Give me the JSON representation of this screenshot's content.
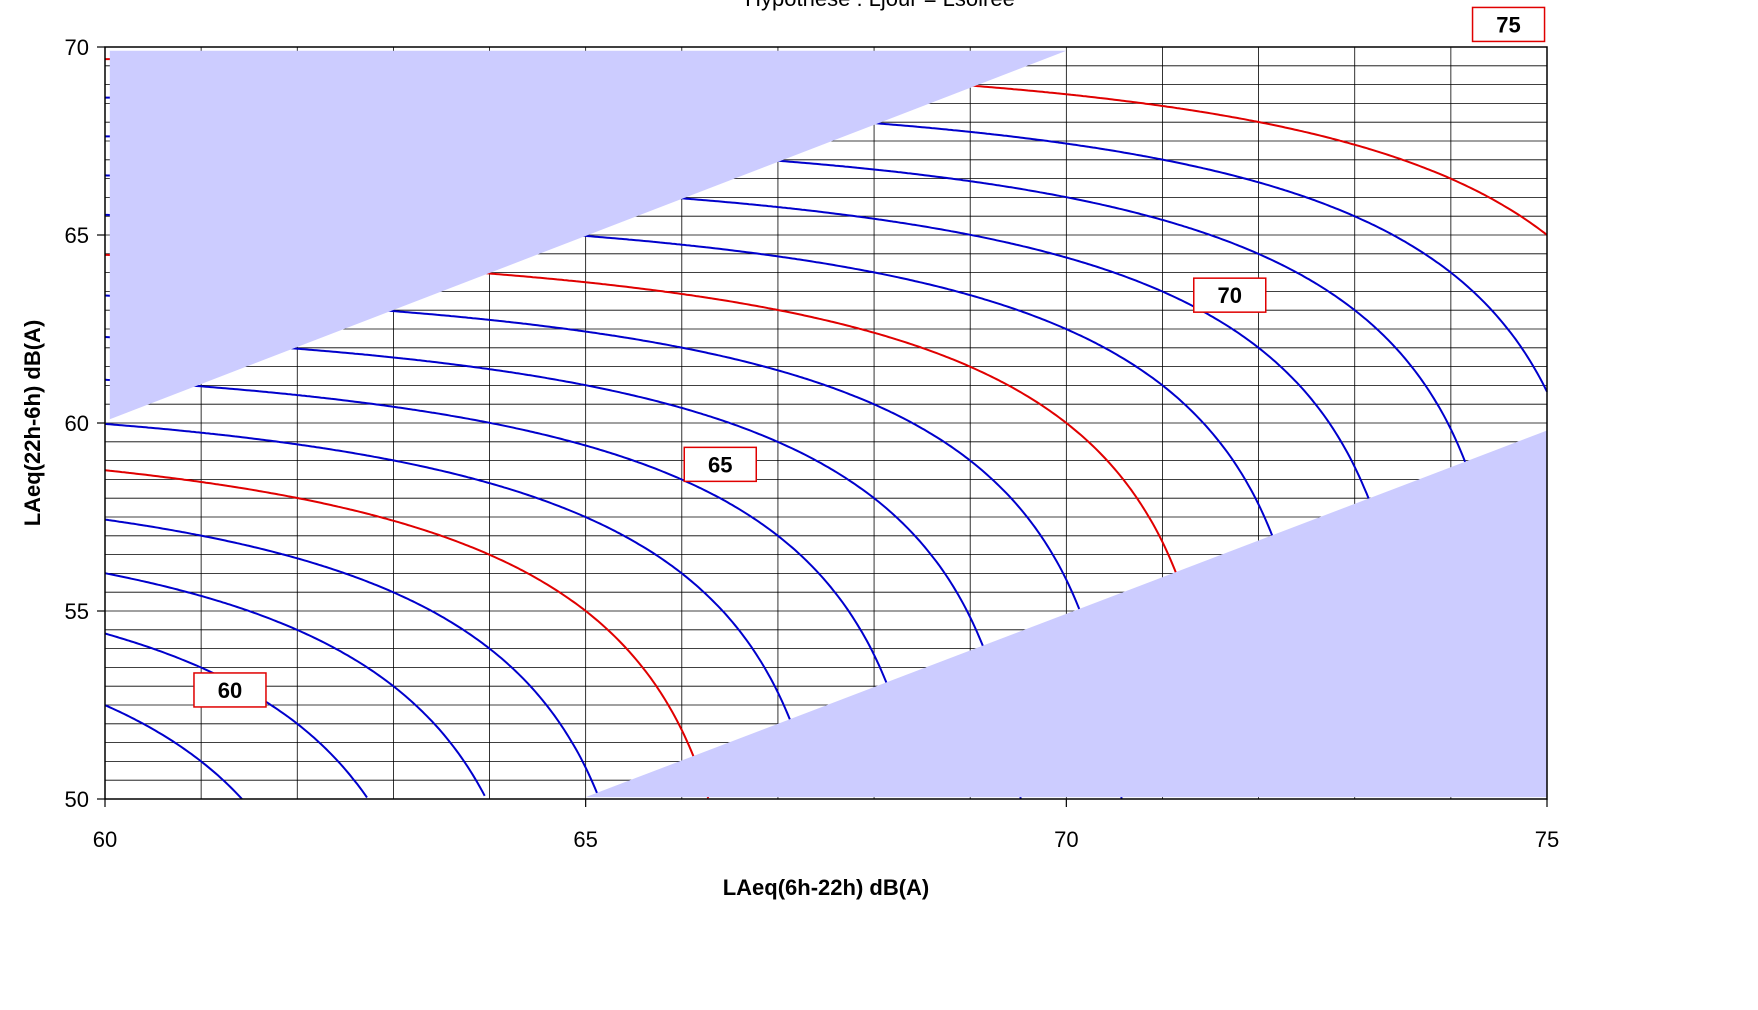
{
  "chart_data": {
    "type": "contour",
    "title": "Hypothèse : Ljour = Lsoirée",
    "xlabel": "LAeq(6h-22h)  dB(A)",
    "ylabel": "LAeq(22h-6h)  dB(A)",
    "xlim": [
      60,
      75
    ],
    "ylim": [
      50,
      70
    ],
    "x_ticks": [
      60,
      65,
      70,
      75
    ],
    "y_ticks": [
      50,
      55,
      60,
      65,
      70
    ],
    "x_minor_step": 1,
    "y_minor_step": 0.5,
    "grid": true,
    "contour": {
      "quantity": "10*log10((16*10^(x/10) + 8*10^((y+10)/10))/24)",
      "levels": [
        58,
        59,
        60,
        61,
        62,
        63,
        64,
        65,
        66,
        67,
        68,
        69,
        70,
        71,
        72,
        73,
        74,
        75
      ],
      "highlight_levels": [
        60,
        65,
        70,
        75
      ],
      "line_color": "#0000cc",
      "highlight_color": "#e00000"
    },
    "contour_labels": [
      {
        "text": "60",
        "x": 61.3,
        "y": 52.9
      },
      {
        "text": "65",
        "x": 66.4,
        "y": 58.9
      },
      {
        "text": "70",
        "x": 71.7,
        "y": 63.4
      },
      {
        "text": "75",
        "x": 74.6,
        "y": 70.6
      }
    ],
    "shaded_regions": [
      {
        "name": "upper-left",
        "points": [
          [
            60.05,
            69.9
          ],
          [
            70.0,
            69.9
          ],
          [
            60.05,
            60.1
          ]
        ]
      },
      {
        "name": "lower-right",
        "points": [
          [
            65.0,
            50.05
          ],
          [
            75.0,
            59.8
          ],
          [
            75.0,
            50.05
          ]
        ]
      }
    ],
    "shade_color": "#ccccff"
  }
}
